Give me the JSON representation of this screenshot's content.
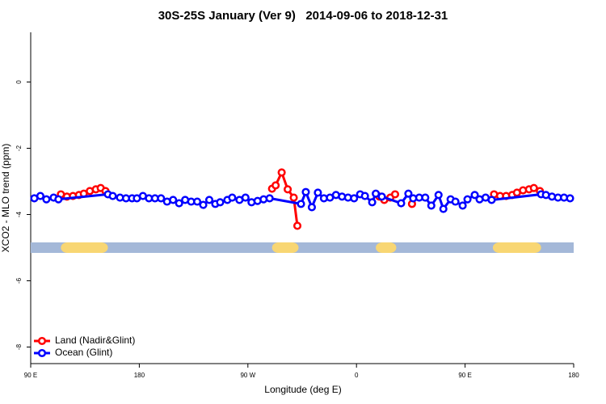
{
  "chart_data": {
    "type": "line",
    "title": "30S-25S January (Ver 9)   2014-09-06 to 2018-12-31",
    "x_label": "Longitude (deg E)",
    "y_label": "XCO2 - MLO trend (ppm)",
    "xlim": [
      90,
      540
    ],
    "ylim": [
      -8.5,
      1.5
    ],
    "xticks": [
      {
        "value": 90,
        "label": "90 E"
      },
      180,
      {
        "value": 270,
        "label": "90 W"
      },
      {
        "value": 360,
        "label": "0"
      },
      {
        "value": 450,
        "label": "90 E"
      },
      {
        "value": 540,
        "label": "180"
      }
    ],
    "yticks": [
      0,
      -2,
      -4,
      -6,
      -8
    ],
    "legend": "bottom-left",
    "mask": {
      "y": -5,
      "color": "#a4b8d8",
      "land_color": "#f8d673",
      "land": [
        [
          115,
          154
        ],
        [
          290,
          312
        ],
        [
          376,
          393
        ],
        [
          473,
          513
        ]
      ]
    },
    "series": [
      {
        "name": "Land (Nadir&Glint)",
        "color": "#ff0000",
        "x": [
          115,
          120,
          125,
          130,
          134,
          139,
          144,
          148,
          152,
          null,
          290,
          293,
          298,
          303,
          308,
          311,
          null,
          379,
          383,
          388,
          392,
          null,
          406,
          null,
          474,
          479,
          484,
          489,
          493,
          498,
          503,
          507,
          512
        ],
        "values": [
          -3.39,
          -3.46,
          -3.44,
          -3.41,
          -3.37,
          -3.29,
          -3.24,
          -3.2,
          -3.29,
          null,
          -3.22,
          -3.12,
          -2.73,
          -3.24,
          -3.49,
          -4.34,
          null,
          -3.46,
          -3.56,
          -3.49,
          -3.39,
          null,
          -3.68,
          null,
          -3.39,
          -3.44,
          -3.44,
          -3.41,
          -3.34,
          -3.27,
          -3.24,
          -3.2,
          -3.29
        ]
      },
      {
        "name": "Ocean (Glint)",
        "color": "#0000ff",
        "x": [
          93,
          98,
          103,
          109,
          113,
          154,
          158,
          164,
          169,
          174,
          178,
          183,
          188,
          193,
          198,
          203,
          208,
          213,
          218,
          223,
          228,
          233,
          238,
          243,
          247,
          253,
          257,
          263,
          268,
          273,
          278,
          283,
          288,
          314,
          318,
          323,
          328,
          333,
          338,
          343,
          348,
          353,
          358,
          363,
          367,
          373,
          376,
          381,
          397,
          403,
          407,
          412,
          417,
          422,
          428,
          432,
          438,
          442,
          448,
          452,
          458,
          462,
          467,
          472,
          513,
          517,
          522,
          527,
          532,
          537
        ],
        "values": [
          -3.51,
          -3.44,
          -3.54,
          -3.49,
          -3.54,
          -3.39,
          -3.44,
          -3.49,
          -3.51,
          -3.51,
          -3.51,
          -3.44,
          -3.51,
          -3.51,
          -3.51,
          -3.61,
          -3.56,
          -3.66,
          -3.56,
          -3.61,
          -3.61,
          -3.71,
          -3.56,
          -3.68,
          -3.63,
          -3.56,
          -3.49,
          -3.56,
          -3.49,
          -3.63,
          -3.59,
          -3.54,
          -3.51,
          -3.68,
          -3.32,
          -3.78,
          -3.34,
          -3.51,
          -3.49,
          -3.41,
          -3.46,
          -3.49,
          -3.51,
          -3.39,
          -3.44,
          -3.63,
          -3.37,
          -3.46,
          -3.66,
          -3.37,
          -3.51,
          -3.49,
          -3.49,
          -3.73,
          -3.41,
          -3.83,
          -3.54,
          -3.61,
          -3.73,
          -3.54,
          -3.41,
          -3.54,
          -3.49,
          -3.56,
          -3.39,
          -3.41,
          -3.46,
          -3.49,
          -3.49,
          -3.51
        ]
      }
    ]
  }
}
